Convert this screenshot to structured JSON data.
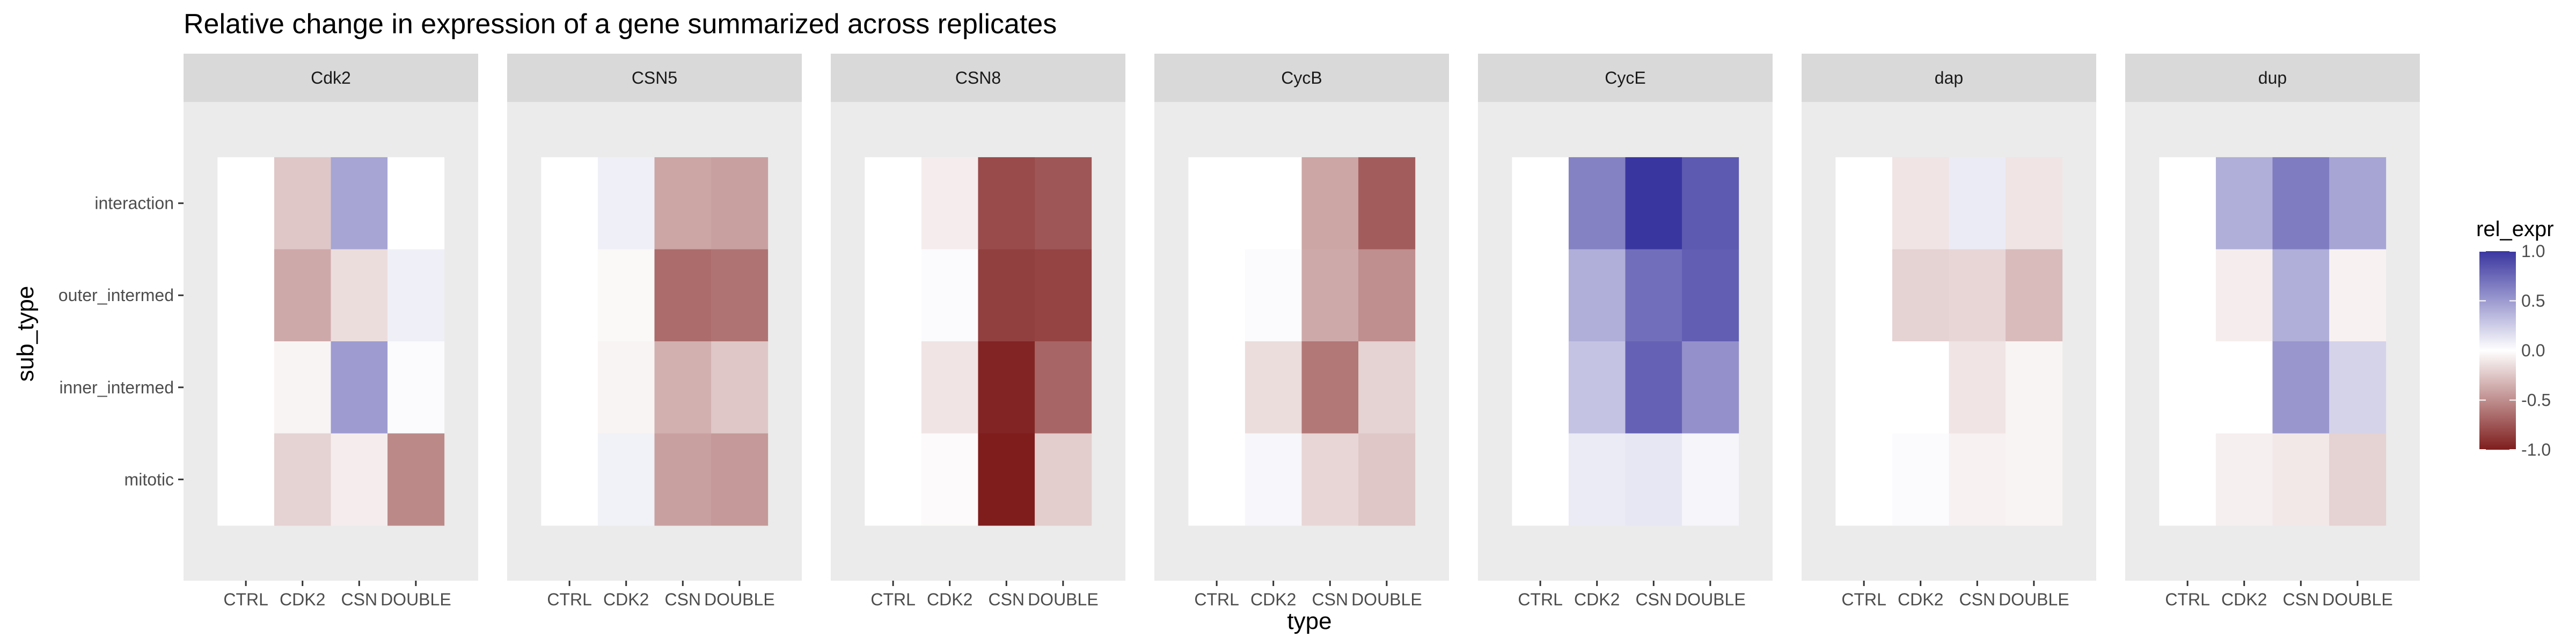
{
  "chart_data": {
    "type": "heatmap",
    "title": "Relative change in expression of a gene summarized across replicates",
    "xlabel": "type",
    "ylabel": "sub_type",
    "x_categories": [
      "CTRL",
      "CDK2",
      "CSN",
      "DOUBLE"
    ],
    "y_categories": [
      "interaction",
      "outer_intermed",
      "inner_intermed",
      "mitotic"
    ],
    "legend": {
      "title": "rel_expr",
      "ticks": [
        "1.0",
        "0.5",
        "0.0",
        "-0.5",
        "-1.0"
      ],
      "tick_values": [
        1.0,
        0.5,
        0.0,
        -0.5,
        -1.0
      ],
      "range": [
        -1.0,
        1.0
      ],
      "low_color": "#7f1d1d",
      "mid_color": "#ffffff",
      "high_color": "#3a36a0",
      "position": "right"
    },
    "panel_background": "#ebebeb",
    "strip_background": "#d9d9d9",
    "panels": [
      {
        "name": "Cdk2",
        "values": [
          [
            0,
            -0.25,
            0.45,
            0
          ],
          [
            0,
            -0.38,
            -0.15,
            0.08
          ],
          [
            0,
            -0.05,
            0.5,
            0.02
          ],
          [
            0,
            -0.2,
            -0.08,
            -0.52
          ]
        ]
      },
      {
        "name": "CSN5",
        "values": [
          [
            0,
            0.08,
            -0.4,
            -0.42
          ],
          [
            0,
            -0.03,
            -0.65,
            -0.62
          ],
          [
            0,
            -0.05,
            -0.35,
            -0.25
          ],
          [
            0,
            0.07,
            -0.42,
            -0.45
          ]
        ]
      },
      {
        "name": "CSN8",
        "values": [
          [
            0,
            -0.08,
            -0.8,
            -0.75
          ],
          [
            0,
            0.02,
            -0.85,
            -0.83
          ],
          [
            0,
            -0.12,
            -0.97,
            -0.68
          ],
          [
            0,
            -0.02,
            -1.0,
            -0.22
          ]
        ]
      },
      {
        "name": "CycB",
        "values": [
          [
            0,
            0,
            -0.4,
            -0.72
          ],
          [
            0,
            0.02,
            -0.38,
            -0.5
          ],
          [
            0,
            -0.15,
            -0.6,
            -0.2
          ],
          [
            0,
            0.04,
            -0.18,
            -0.25
          ]
        ]
      },
      {
        "name": "CycE",
        "values": [
          [
            0,
            0.62,
            1.0,
            0.82
          ],
          [
            0,
            0.4,
            0.72,
            0.8
          ],
          [
            0,
            0.3,
            0.78,
            0.55
          ],
          [
            0,
            0.1,
            0.12,
            0.05
          ]
        ]
      },
      {
        "name": "dap",
        "values": [
          [
            0,
            -0.12,
            0.1,
            -0.12
          ],
          [
            0,
            -0.2,
            -0.18,
            -0.3
          ],
          [
            0,
            0.0,
            -0.12,
            -0.05
          ],
          [
            0,
            0.02,
            -0.06,
            -0.05
          ]
        ]
      },
      {
        "name": "dup",
        "values": [
          [
            0,
            0.4,
            0.65,
            0.45
          ],
          [
            0,
            -0.08,
            0.4,
            -0.06
          ],
          [
            0,
            0.0,
            0.52,
            0.22
          ],
          [
            0,
            -0.07,
            -0.1,
            -0.2
          ]
        ]
      }
    ]
  }
}
